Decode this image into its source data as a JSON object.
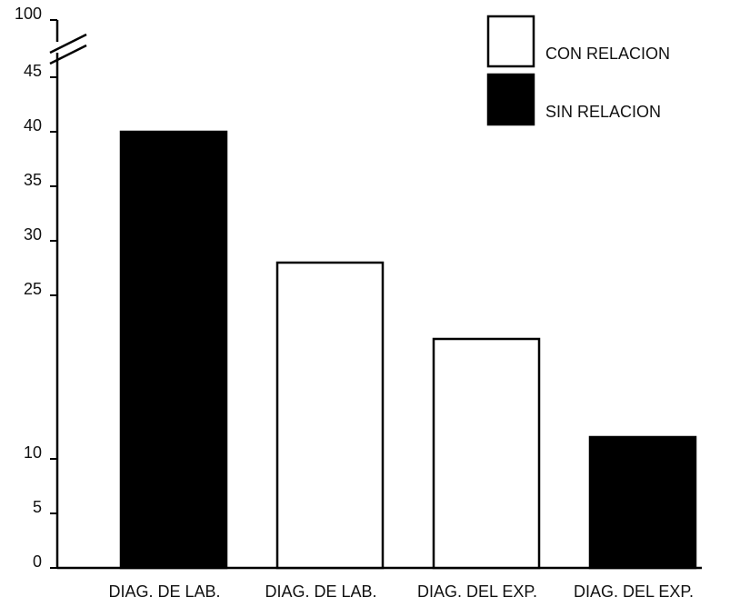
{
  "chart_data": {
    "type": "bar",
    "categories": [
      "DIAG. DE LAB.",
      "DIAG. DE LAB.",
      "DIAG. DEL EXP.",
      "DIAG. DEL EXP."
    ],
    "series": [
      {
        "name": "CON RELACION",
        "color": "#ffffff",
        "values": [
          null,
          28,
          21,
          null
        ]
      },
      {
        "name": "SIN RELACION",
        "color": "#000000",
        "values": [
          40,
          null,
          null,
          12
        ]
      }
    ],
    "ylim": [
      0,
      100
    ],
    "yticks": [
      0,
      5,
      10,
      25,
      30,
      35,
      40,
      45,
      100
    ],
    "axis_break": true,
    "legend": "upper right"
  }
}
